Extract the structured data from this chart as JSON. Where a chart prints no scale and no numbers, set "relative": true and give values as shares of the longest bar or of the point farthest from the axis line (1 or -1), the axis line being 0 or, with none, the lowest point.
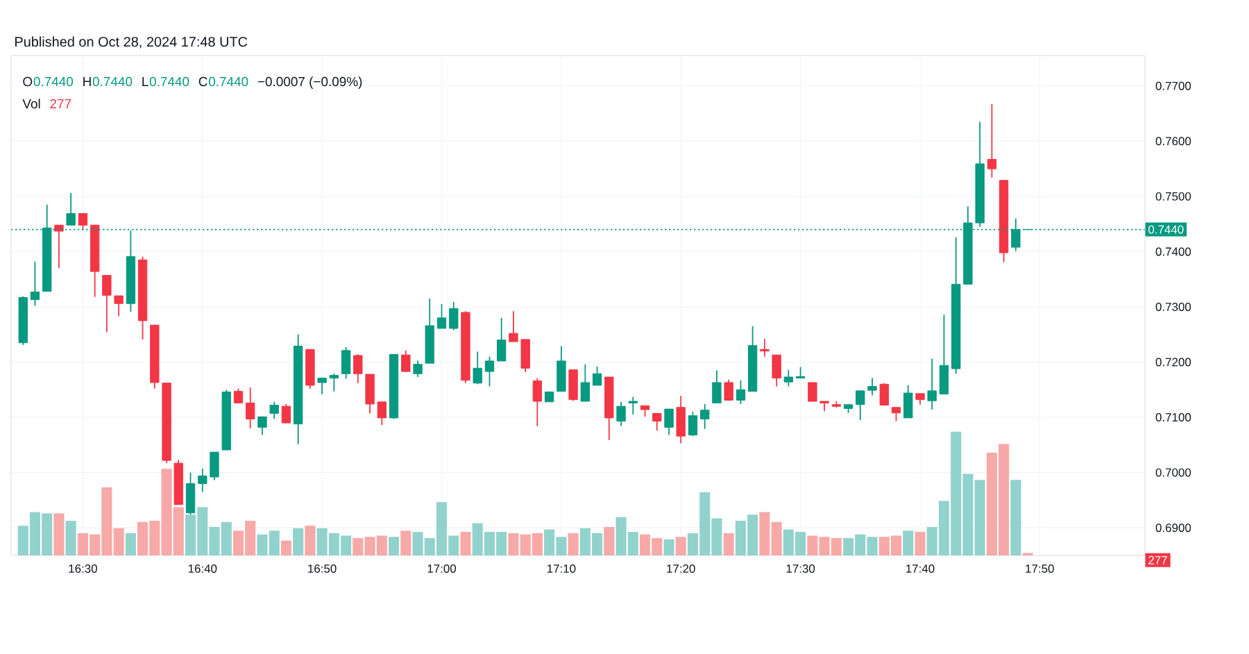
{
  "chart_data": [
    {
      "type": "candlestick",
      "x": [
        16.4167,
        16.4333,
        16.45,
        16.4667,
        16.4833,
        16.5,
        16.5167,
        16.5333,
        16.55,
        16.5667,
        16.5833,
        16.6,
        16.6167,
        16.6333,
        16.65,
        16.6667,
        16.6833,
        16.7,
        16.7167,
        16.7333,
        16.75,
        16.7667,
        16.7833,
        16.8,
        16.8167,
        16.8333,
        16.85,
        16.8667,
        16.8833,
        16.9,
        16.9167,
        16.9333,
        16.95,
        16.9667,
        16.9833,
        17,
        17.0167,
        17.0333,
        17.05,
        17.0667,
        17.0833,
        17.1,
        17.1167,
        17.1333,
        17.15,
        17.1667,
        17.1833,
        17.2,
        17.2167,
        17.2333,
        17.25,
        17.2667,
        17.2833,
        17.3,
        17.3167,
        17.3333,
        17.35,
        17.3667,
        17.3833,
        17.4,
        17.4167,
        17.4333,
        17.45,
        17.4667,
        17.4833,
        17.5,
        17.5167,
        17.5333,
        17.55,
        17.5667,
        17.5833,
        17.6,
        17.6167,
        17.6333,
        17.65,
        17.6667,
        17.6833,
        17.7,
        17.7167,
        17.7333,
        17.75,
        17.7667,
        17.7833,
        17.8,
        17.8167
      ],
      "ohlc": [
        [
          0.7235,
          0.7319,
          0.7231,
          0.7317
        ],
        [
          0.7313,
          0.7382,
          0.7302,
          0.7327
        ],
        [
          0.7328,
          0.7485,
          0.7328,
          0.7443
        ],
        [
          0.7448,
          0.7448,
          0.737,
          0.7437
        ],
        [
          0.7448,
          0.7506,
          0.7448,
          0.7469
        ],
        [
          0.7469,
          0.7469,
          0.7439,
          0.7448
        ],
        [
          0.7448,
          0.7448,
          0.7318,
          0.7364
        ],
        [
          0.7357,
          0.7357,
          0.7254,
          0.7321
        ],
        [
          0.732,
          0.732,
          0.7283,
          0.7306
        ],
        [
          0.7306,
          0.7438,
          0.7291,
          0.7391
        ],
        [
          0.7385,
          0.7391,
          0.7241,
          0.7275
        ],
        [
          0.7267,
          0.7267,
          0.7152,
          0.7163
        ],
        [
          0.7162,
          0.7162,
          0.7017,
          0.7022
        ],
        [
          0.7017,
          0.7023,
          0.6942,
          0.6942
        ],
        [
          0.6927,
          0.7,
          0.6917,
          0.698
        ],
        [
          0.698,
          0.7007,
          0.6965,
          0.6994
        ],
        [
          0.6992,
          0.7037,
          0.6986,
          0.7037
        ],
        [
          0.7041,
          0.715,
          0.7041,
          0.7146
        ],
        [
          0.7147,
          0.7152,
          0.7126,
          0.7126
        ],
        [
          0.7126,
          0.7154,
          0.708,
          0.7097
        ],
        [
          0.7082,
          0.7101,
          0.7068,
          0.7101
        ],
        [
          0.7107,
          0.7128,
          0.7097,
          0.7122
        ],
        [
          0.712,
          0.7124,
          0.7089,
          0.709
        ],
        [
          0.7088,
          0.725,
          0.7051,
          0.7229
        ],
        [
          0.7223,
          0.7223,
          0.7152,
          0.7158
        ],
        [
          0.7163,
          0.7171,
          0.7142,
          0.7171
        ],
        [
          0.7171,
          0.7179,
          0.7147,
          0.7176
        ],
        [
          0.7179,
          0.7227,
          0.717,
          0.7221
        ],
        [
          0.7212,
          0.7214,
          0.7162,
          0.7179
        ],
        [
          0.7178,
          0.7178,
          0.7107,
          0.7124
        ],
        [
          0.7128,
          0.7128,
          0.7086,
          0.7099
        ],
        [
          0.7099,
          0.7214,
          0.7097,
          0.7214
        ],
        [
          0.7213,
          0.7221,
          0.7183,
          0.7183
        ],
        [
          0.7179,
          0.7203,
          0.7173,
          0.7196
        ],
        [
          0.7198,
          0.7315,
          0.7198,
          0.7266
        ],
        [
          0.7261,
          0.7305,
          0.7261,
          0.728
        ],
        [
          0.7261,
          0.7309,
          0.7258,
          0.7297
        ],
        [
          0.729,
          0.7292,
          0.7162,
          0.7167
        ],
        [
          0.7162,
          0.7219,
          0.716,
          0.7189
        ],
        [
          0.7183,
          0.721,
          0.7156,
          0.7202
        ],
        [
          0.7202,
          0.728,
          0.7202,
          0.724
        ],
        [
          0.7252,
          0.7292,
          0.7237,
          0.7237
        ],
        [
          0.7241,
          0.7241,
          0.7182,
          0.7189
        ],
        [
          0.7166,
          0.7171,
          0.7084,
          0.7129
        ],
        [
          0.7128,
          0.7146,
          0.7128,
          0.7146
        ],
        [
          0.7147,
          0.7229,
          0.7147,
          0.7202
        ],
        [
          0.7186,
          0.7186,
          0.713,
          0.7132
        ],
        [
          0.7129,
          0.7196,
          0.7129,
          0.7163
        ],
        [
          0.7158,
          0.7192,
          0.7158,
          0.7179
        ],
        [
          0.7173,
          0.7173,
          0.7059,
          0.7099
        ],
        [
          0.7093,
          0.7128,
          0.7084,
          0.712
        ],
        [
          0.7126,
          0.7137,
          0.7105,
          0.7129
        ],
        [
          0.7121,
          0.7121,
          0.7101,
          0.7114
        ],
        [
          0.7107,
          0.7107,
          0.7076,
          0.7093
        ],
        [
          0.7082,
          0.7115,
          0.7068,
          0.7115
        ],
        [
          0.7118,
          0.7139,
          0.7053,
          0.7066
        ],
        [
          0.7068,
          0.711,
          0.7066,
          0.7103
        ],
        [
          0.7097,
          0.7124,
          0.7079,
          0.7113
        ],
        [
          0.7126,
          0.7185,
          0.7126,
          0.7163
        ],
        [
          0.7163,
          0.7168,
          0.7131,
          0.7131
        ],
        [
          0.7131,
          0.7167,
          0.7124,
          0.715
        ],
        [
          0.7147,
          0.7265,
          0.7147,
          0.723
        ],
        [
          0.7223,
          0.7242,
          0.721,
          0.722
        ],
        [
          0.7213,
          0.7213,
          0.7156,
          0.7171
        ],
        [
          0.7164,
          0.7186,
          0.7156,
          0.7173
        ],
        [
          0.7171,
          0.7191,
          0.7171,
          0.7174
        ],
        [
          0.7163,
          0.7163,
          0.7129,
          0.7129
        ],
        [
          0.7129,
          0.7129,
          0.7111,
          0.7126
        ],
        [
          0.7123,
          0.7129,
          0.7118,
          0.712
        ],
        [
          0.7116,
          0.7123,
          0.7108,
          0.7123
        ],
        [
          0.7123,
          0.7148,
          0.7095,
          0.7148
        ],
        [
          0.7149,
          0.7171,
          0.714,
          0.7156
        ],
        [
          0.716,
          0.7162,
          0.7122,
          0.7122
        ],
        [
          0.7118,
          0.7118,
          0.7093,
          0.7108
        ],
        [
          0.7099,
          0.7158,
          0.7099,
          0.7144
        ],
        [
          0.7143,
          0.7143,
          0.7123,
          0.7132
        ],
        [
          0.713,
          0.7206,
          0.7114,
          0.7148
        ],
        [
          0.7142,
          0.7286,
          0.7142,
          0.7194
        ],
        [
          0.7188,
          0.7426,
          0.7179,
          0.7341
        ],
        [
          0.7341,
          0.7482,
          0.7341,
          0.7452
        ],
        [
          0.7452,
          0.7635,
          0.7445,
          0.7559
        ],
        [
          0.7567,
          0.7667,
          0.7534,
          0.755
        ],
        [
          0.7529,
          0.7529,
          0.7381,
          0.7398
        ],
        [
          0.7408,
          0.746,
          0.7401,
          0.744
        ],
        [
          0.744,
          0.744,
          0.744,
          0.744
        ]
      ],
      "colors": [
        "#089981",
        "#089981",
        "#089981",
        "#f23645",
        "#089981",
        "#f23645",
        "#f23645",
        "#f23645",
        "#f23645",
        "#089981",
        "#f23645",
        "#f23645",
        "#f23645",
        "#f23645",
        "#089981",
        "#089981",
        "#089981",
        "#089981",
        "#f23645",
        "#f23645",
        "#089981",
        "#089981",
        "#f23645",
        "#089981",
        "#f23645",
        "#089981",
        "#089981",
        "#089981",
        "#f23645",
        "#f23645",
        "#f23645",
        "#089981",
        "#f23645",
        "#089981",
        "#089981",
        "#089981",
        "#089981",
        "#f23645",
        "#089981",
        "#089981",
        "#089981",
        "#f23645",
        "#f23645",
        "#f23645",
        "#089981",
        "#089981",
        "#f23645",
        "#089981",
        "#089981",
        "#f23645",
        "#089981",
        "#089981",
        "#f23645",
        "#f23645",
        "#089981",
        "#f23645",
        "#089981",
        "#089981",
        "#089981",
        "#f23645",
        "#089981",
        "#089981",
        "#f23645",
        "#f23645",
        "#089981",
        "#089981",
        "#f23645",
        "#f23645",
        "#f23645",
        "#089981",
        "#089981",
        "#089981",
        "#f23645",
        "#f23645",
        "#089981",
        "#f23645",
        "#089981",
        "#089981",
        "#089981",
        "#089981",
        "#089981",
        "#f23645",
        "#f23645",
        "#089981",
        "#089981"
      ],
      "xlim": [
        16.4,
        17.98
      ],
      "xticks": [
        {
          "value": 16.5,
          "label": null
        },
        {
          "value": 16.6667,
          "label": null
        },
        {
          "value": 16.8333,
          "label": null
        },
        {
          "value": 17,
          "label": null
        },
        {
          "value": 17.1667,
          "label": null
        },
        {
          "value": 17.3333,
          "label": null
        },
        {
          "value": 17.5,
          "label": null
        },
        {
          "value": 17.6667,
          "label": null
        },
        {
          "value": 17.8333,
          "label": null
        }
      ],
      "ylim": [
        0.685,
        0.7755
      ],
      "yticks": [
        {
          "value": 0.69,
          "label": "0.6900"
        },
        {
          "value": 0.7,
          "label": "0.7000"
        },
        {
          "value": 0.71,
          "label": "0.7100"
        },
        {
          "value": 0.72,
          "label": "0.7200"
        },
        {
          "value": 0.73,
          "label": "0.7300"
        },
        {
          "value": 0.74,
          "label": "0.7400"
        },
        {
          "value": 0.75,
          "label": "0.7500"
        },
        {
          "value": 0.76,
          "label": "0.7600"
        },
        {
          "value": 0.77,
          "label": "0.7700"
        }
      ],
      "tick_labels": "y",
      "grid": true,
      "ref_lines": [
        {
          "axis": "y",
          "value": 0.744,
          "label": "0.7440",
          "color": "#089981",
          "line_style": "dotted"
        }
      ],
      "annotations": [
        "Published on Oct 28, 2024 17:48 UTC",
        "O",
        "0.7440",
        "H",
        "0.7440",
        "L",
        "0.7440",
        "C",
        "0.7440",
        "−0.0007 (−0.09%)"
      ]
    },
    {
      "type": "bar",
      "relative": true,
      "x": [
        16.4167,
        16.4333,
        16.45,
        16.4667,
        16.4833,
        16.5,
        16.5167,
        16.5333,
        16.55,
        16.5667,
        16.5833,
        16.6,
        16.6167,
        16.6333,
        16.65,
        16.6667,
        16.6833,
        16.7,
        16.7167,
        16.7333,
        16.75,
        16.7667,
        16.7833,
        16.8,
        16.8167,
        16.8333,
        16.85,
        16.8667,
        16.8833,
        16.9,
        16.9167,
        16.9333,
        16.95,
        16.9667,
        16.9833,
        17,
        17.0167,
        17.0333,
        17.05,
        17.0667,
        17.0833,
        17.1,
        17.1167,
        17.1333,
        17.15,
        17.1667,
        17.1833,
        17.2,
        17.2167,
        17.2333,
        17.25,
        17.2667,
        17.2833,
        17.3,
        17.3167,
        17.3333,
        17.35,
        17.3667,
        17.3833,
        17.4,
        17.4167,
        17.4333,
        17.45,
        17.4667,
        17.4833,
        17.5,
        17.5167,
        17.5333,
        17.55,
        17.5667,
        17.5833,
        17.6,
        17.6167,
        17.6333,
        17.65,
        17.6667,
        17.6833,
        17.7,
        17.7167,
        17.7333,
        17.75,
        17.7667,
        17.7833,
        17.8,
        17.8167
      ],
      "values": [
        0.24,
        0.35,
        0.34,
        0.34,
        0.28,
        0.18,
        0.17,
        0.55,
        0.22,
        0.18,
        0.27,
        0.28,
        0.7,
        0.39,
        0.33,
        0.39,
        0.23,
        0.27,
        0.2,
        0.28,
        0.17,
        0.2,
        0.12,
        0.22,
        0.24,
        0.22,
        0.18,
        0.16,
        0.14,
        0.15,
        0.16,
        0.15,
        0.2,
        0.19,
        0.14,
        0.43,
        0.16,
        0.19,
        0.26,
        0.19,
        0.19,
        0.18,
        0.17,
        0.18,
        0.21,
        0.15,
        0.18,
        0.22,
        0.18,
        0.23,
        0.31,
        0.19,
        0.17,
        0.14,
        0.13,
        0.15,
        0.18,
        0.51,
        0.3,
        0.18,
        0.28,
        0.33,
        0.35,
        0.27,
        0.21,
        0.19,
        0.16,
        0.15,
        0.14,
        0.14,
        0.17,
        0.15,
        0.15,
        0.16,
        0.2,
        0.19,
        0.23,
        0.44,
        1,
        0.66,
        0.61,
        0.83,
        0.9,
        0.61,
        0.02
      ],
      "colors": [
        "#92d2cc",
        "#92d2cc",
        "#92d2cc",
        "#f7a9a7",
        "#92d2cc",
        "#f7a9a7",
        "#f7a9a7",
        "#f7a9a7",
        "#f7a9a7",
        "#92d2cc",
        "#f7a9a7",
        "#f7a9a7",
        "#f7a9a7",
        "#f7a9a7",
        "#92d2cc",
        "#92d2cc",
        "#92d2cc",
        "#92d2cc",
        "#f7a9a7",
        "#f7a9a7",
        "#92d2cc",
        "#92d2cc",
        "#f7a9a7",
        "#92d2cc",
        "#f7a9a7",
        "#92d2cc",
        "#92d2cc",
        "#92d2cc",
        "#f7a9a7",
        "#f7a9a7",
        "#f7a9a7",
        "#92d2cc",
        "#f7a9a7",
        "#92d2cc",
        "#92d2cc",
        "#92d2cc",
        "#92d2cc",
        "#f7a9a7",
        "#92d2cc",
        "#92d2cc",
        "#92d2cc",
        "#f7a9a7",
        "#f7a9a7",
        "#f7a9a7",
        "#92d2cc",
        "#92d2cc",
        "#f7a9a7",
        "#92d2cc",
        "#92d2cc",
        "#f7a9a7",
        "#92d2cc",
        "#92d2cc",
        "#f7a9a7",
        "#f7a9a7",
        "#92d2cc",
        "#f7a9a7",
        "#92d2cc",
        "#92d2cc",
        "#92d2cc",
        "#f7a9a7",
        "#92d2cc",
        "#92d2cc",
        "#f7a9a7",
        "#f7a9a7",
        "#92d2cc",
        "#92d2cc",
        "#f7a9a7",
        "#f7a9a7",
        "#f7a9a7",
        "#92d2cc",
        "#92d2cc",
        "#92d2cc",
        "#f7a9a7",
        "#f7a9a7",
        "#92d2cc",
        "#f7a9a7",
        "#92d2cc",
        "#92d2cc",
        "#92d2cc",
        "#92d2cc",
        "#92d2cc",
        "#f7a9a7",
        "#f7a9a7",
        "#92d2cc",
        "#f7a9a7"
      ],
      "xlim": [
        16.4,
        17.98
      ],
      "xticks": [
        {
          "value": 16.5,
          "label": "16:30"
        },
        {
          "value": 16.6667,
          "label": "16:40"
        },
        {
          "value": 16.8333,
          "label": "16:50"
        },
        {
          "value": 17,
          "label": "17:00"
        },
        {
          "value": 17.1667,
          "label": "17:10"
        },
        {
          "value": 17.3333,
          "label": "17:20"
        },
        {
          "value": 17.5,
          "label": "17:30"
        },
        {
          "value": 17.6667,
          "label": "17:40"
        },
        {
          "value": 17.8333,
          "label": "17:50"
        }
      ],
      "tick_labels": "x",
      "annotations": [
        "Vol",
        "277",
        "277"
      ]
    }
  ]
}
